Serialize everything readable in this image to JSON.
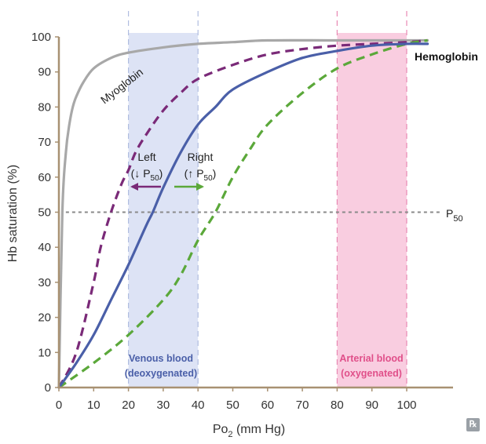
{
  "chart_data": {
    "type": "line",
    "title": "",
    "xlabel": {
      "prefix": "Po",
      "sub": "2",
      "suffix": " (mm Hg)"
    },
    "ylabel": "Hb saturation (%)",
    "xlim": [
      0,
      110
    ],
    "ylim": [
      0,
      100
    ],
    "x_ticks": [
      0,
      10,
      20,
      30,
      40,
      50,
      60,
      70,
      80,
      90,
      100
    ],
    "y_ticks": [
      0,
      10,
      20,
      30,
      40,
      50,
      60,
      70,
      80,
      90,
      100
    ],
    "colors": {
      "axis": "#a89172",
      "venous_band": "#dde3f5",
      "arterial_band": "#f9cde0",
      "myoglobin": "#a8a8a8",
      "left_shift": "#7a2a78",
      "hemoglobin": "#4a5fa8",
      "right_shift": "#5ba83a",
      "p50_line": "#8a8a8a",
      "venous_text": "#4a5fa8",
      "arterial_text": "#e0508a"
    },
    "bands": [
      {
        "name": "venous",
        "x_range": [
          20,
          40
        ],
        "label_line1": "Venous blood",
        "label_line2": "(deoxygenated)"
      },
      {
        "name": "arterial",
        "x_range": [
          80,
          100
        ],
        "label_line1": "Arterial blood",
        "label_line2": "(oxygenated)"
      }
    ],
    "reference_line": {
      "y": 50,
      "label_main": "P",
      "label_sub": "50"
    },
    "series": [
      {
        "name": "Myoglobin",
        "style": "solid",
        "x": [
          0,
          1,
          2,
          3,
          4,
          5,
          7,
          10,
          15,
          20,
          30,
          40,
          50,
          60,
          80,
          100,
          106
        ],
        "y": [
          0,
          50,
          67,
          75,
          80,
          83,
          87,
          91,
          94,
          95.5,
          97,
          98,
          98.5,
          99,
          99,
          99,
          99
        ]
      },
      {
        "name": "Left shift",
        "style": "dashed",
        "x": [
          0,
          5,
          10,
          12,
          15,
          18,
          20,
          22,
          25,
          30,
          35,
          40,
          50,
          60,
          70,
          80,
          90,
          100,
          106
        ],
        "y": [
          0,
          10,
          30,
          40,
          50,
          58,
          62,
          67,
          72,
          79,
          84,
          88,
          92,
          95,
          96.5,
          97.5,
          98,
          98.5,
          99
        ]
      },
      {
        "name": "Hemoglobin",
        "style": "solid",
        "x": [
          0,
          5,
          10,
          15,
          20,
          25,
          27,
          30,
          35,
          40,
          45,
          50,
          60,
          70,
          80,
          90,
          100,
          106
        ],
        "y": [
          0,
          7,
          15,
          25,
          35,
          46,
          50,
          57,
          67,
          75,
          80,
          85,
          90,
          94,
          96,
          97.5,
          98,
          98
        ]
      },
      {
        "name": "Right shift",
        "style": "dashed",
        "x": [
          0,
          10,
          20,
          30,
          35,
          40,
          45,
          50,
          55,
          60,
          70,
          80,
          90,
          100,
          106
        ],
        "y": [
          0,
          7,
          15,
          25,
          32,
          42,
          50,
          60,
          68,
          75,
          84,
          91,
          95,
          98,
          99
        ]
      }
    ],
    "curve_labels": {
      "myoglobin": "Myoglobin",
      "hemoglobin": "Hemoglobin"
    },
    "annotations": {
      "left": {
        "line1": "Left",
        "line2_pre": "(↓ P",
        "line2_sub": "50",
        "line2_post": ")"
      },
      "right": {
        "line1": "Right",
        "line2_pre": "(↑ P",
        "line2_sub": "50",
        "line2_post": ")"
      }
    }
  },
  "logo_text": "℞"
}
